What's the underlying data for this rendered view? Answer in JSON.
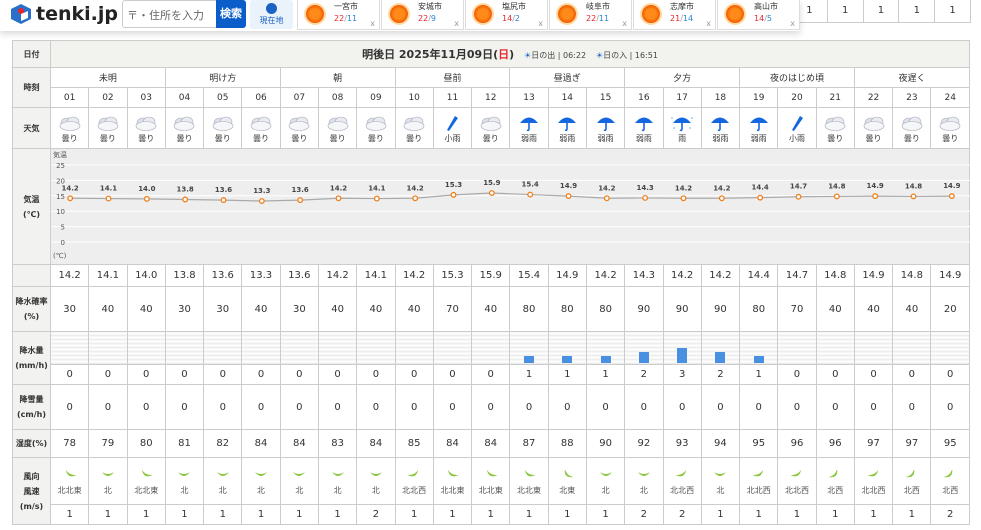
{
  "header": {
    "logo": "tenki.jp",
    "search_placeholder": "〒・住所を入力",
    "search_button": "検索",
    "location_button": "現在地"
  },
  "favorites": [
    {
      "city": "一宮市",
      "high": "22",
      "low": "11"
    },
    {
      "city": "安城市",
      "high": "22",
      "low": "9"
    },
    {
      "city": "塩尻市",
      "high": "14",
      "low": "2"
    },
    {
      "city": "岐阜市",
      "high": "22",
      "low": "11"
    },
    {
      "city": "志摩市",
      "high": "21",
      "low": "14"
    },
    {
      "city": "高山市",
      "high": "14",
      "low": "5"
    }
  ],
  "prev_row": [
    "1",
    "1",
    "1",
    "1",
    "1"
  ],
  "labels": {
    "date": "日付",
    "time": "時刻",
    "weather": "天気",
    "temp_a": "気温",
    "temp_b": "(℃)",
    "precip_prob_a": "降水確率",
    "precip_prob_b": "(%)",
    "precip_a": "降水量",
    "precip_b": "(mm/h)",
    "snow_a": "降雪量",
    "snow_b": "(cm/h)",
    "humidity": "湿度(%)",
    "wind_a": "風向",
    "wind_b": "風速",
    "wind_c": "(m/s)"
  },
  "date": {
    "prefix": "明後日 2025年11月09日(",
    "weekday": "日",
    "suffix": ")",
    "sunrise_label": "日の出",
    "sunrise": "06:22",
    "sunset_label": "日の入",
    "sunset": "16:51"
  },
  "periods": [
    "未明",
    "明け方",
    "朝",
    "昼前",
    "昼過ぎ",
    "夕方",
    "夜のはじめ頃",
    "夜遅く"
  ],
  "hours": [
    "01",
    "02",
    "03",
    "04",
    "05",
    "06",
    "07",
    "08",
    "09",
    "10",
    "11",
    "12",
    "13",
    "14",
    "15",
    "16",
    "17",
    "18",
    "19",
    "20",
    "21",
    "22",
    "23",
    "24"
  ],
  "weather": [
    "曇り",
    "曇り",
    "曇り",
    "曇り",
    "曇り",
    "曇り",
    "曇り",
    "曇り",
    "曇り",
    "曇り",
    "小雨",
    "曇り",
    "弱雨",
    "弱雨",
    "弱雨",
    "弱雨",
    "雨",
    "弱雨",
    "弱雨",
    "小雨",
    "曇り",
    "曇り",
    "曇り",
    "曇り"
  ],
  "colors": {
    "accent": "#0b5ec9",
    "temp_line": "#f07f1a",
    "rain_bar": "#4a90e2",
    "wind": "#8cc63f"
  },
  "chart_data": {
    "type": "line",
    "ylabel": "気温",
    "yunit": "(℃)",
    "yticks": [
      "25",
      "20",
      "15",
      "10",
      "5",
      "0"
    ],
    "ylim": [
      -5,
      28
    ],
    "x": [
      "01",
      "02",
      "03",
      "04",
      "05",
      "06",
      "07",
      "08",
      "09",
      "10",
      "11",
      "12",
      "13",
      "14",
      "15",
      "16",
      "17",
      "18",
      "19",
      "20",
      "21",
      "22",
      "23",
      "24"
    ],
    "values": [
      "14.2",
      "14.1",
      "14.0",
      "13.8",
      "13.6",
      "13.3",
      "13.6",
      "14.2",
      "14.1",
      "14.2",
      "15.3",
      "15.9",
      "15.4",
      "14.9",
      "14.2",
      "14.3",
      "14.2",
      "14.2",
      "14.4",
      "14.7",
      "14.8",
      "14.9",
      "14.8",
      "14.9"
    ]
  },
  "precip_prob": [
    "30",
    "40",
    "40",
    "30",
    "30",
    "40",
    "30",
    "40",
    "40",
    "40",
    "70",
    "40",
    "80",
    "80",
    "80",
    "90",
    "90",
    "90",
    "80",
    "70",
    "40",
    "40",
    "40",
    "20"
  ],
  "precip": [
    "0",
    "0",
    "0",
    "0",
    "0",
    "0",
    "0",
    "0",
    "0",
    "0",
    "0",
    "0",
    "1",
    "1",
    "1",
    "2",
    "3",
    "2",
    "1",
    "0",
    "0",
    "0",
    "0",
    "0"
  ],
  "snow": [
    "0",
    "0",
    "0",
    "0",
    "0",
    "0",
    "0",
    "0",
    "0",
    "0",
    "0",
    "0",
    "0",
    "0",
    "0",
    "0",
    "0",
    "0",
    "0",
    "0",
    "0",
    "0",
    "0",
    "0"
  ],
  "humidity": [
    "78",
    "79",
    "80",
    "81",
    "82",
    "84",
    "84",
    "83",
    "84",
    "85",
    "84",
    "84",
    "87",
    "88",
    "90",
    "92",
    "93",
    "94",
    "95",
    "96",
    "96",
    "97",
    "97",
    "95"
  ],
  "wind_dir": [
    "北北東",
    "北",
    "北北東",
    "北",
    "北",
    "北",
    "北",
    "北",
    "北",
    "北北西",
    "北北東",
    "北北東",
    "北北東",
    "北東",
    "北",
    "北",
    "北北西",
    "北",
    "北北西",
    "北北西",
    "北西",
    "北北西",
    "北西",
    "北西"
  ],
  "wind_speed": [
    "1",
    "1",
    "1",
    "1",
    "1",
    "1",
    "1",
    "1",
    "2",
    "1",
    "1",
    "1",
    "1",
    "1",
    "1",
    "2",
    "2",
    "1",
    "1",
    "1",
    "1",
    "1",
    "1",
    "2"
  ]
}
